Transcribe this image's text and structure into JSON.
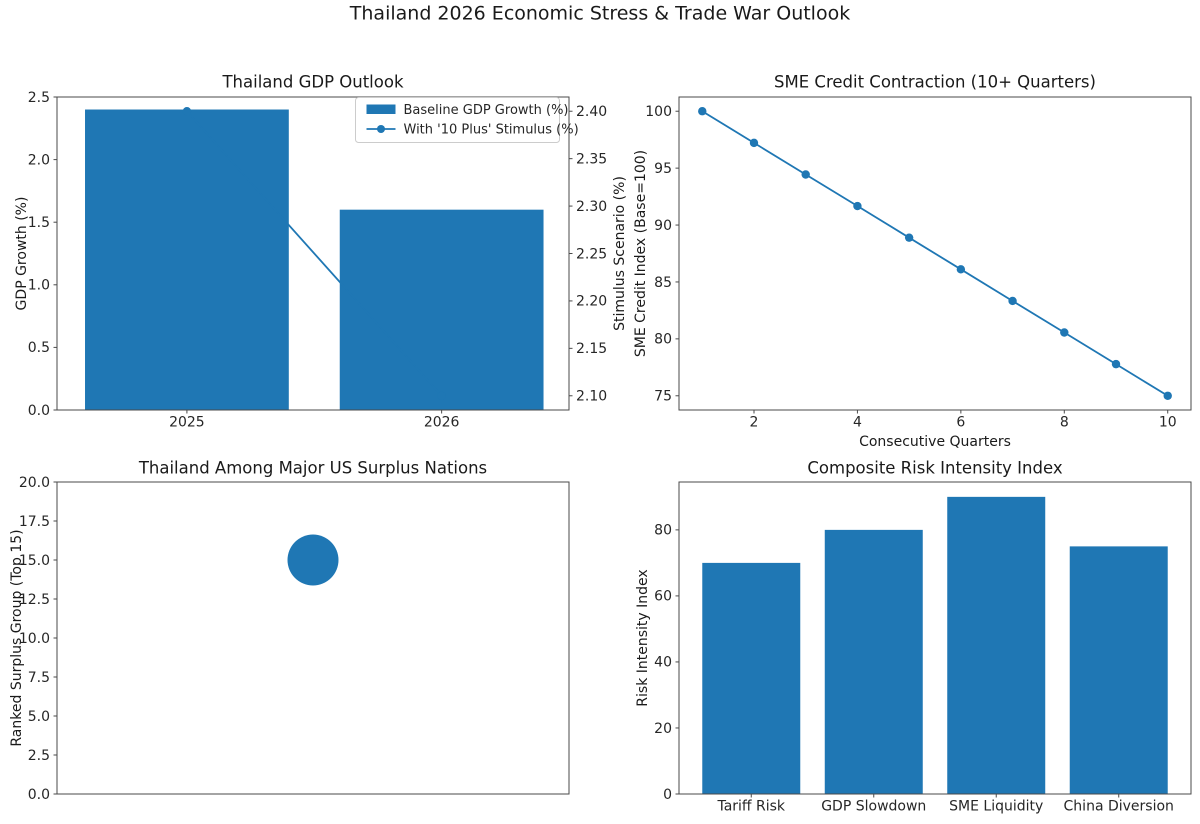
{
  "figure": {
    "suptitle": "Thailand 2026 Economic Stress & Trade War Outlook",
    "background": "#ffffff",
    "accent_blue": "#1f77b4",
    "spine_color": "#4a4a4a",
    "legend_border": "#cccccc"
  },
  "chart_data": [
    {
      "id": "gdp",
      "type": "bar",
      "title": "Thailand GDP Outlook",
      "ylabel": "GDP Growth (%)",
      "ylabel_right": "Stimulus Scenario (%)",
      "categories": [
        "2025",
        "2026"
      ],
      "series": [
        {
          "name": "Baseline GDP Growth (%)",
          "kind": "bar",
          "axis": "left",
          "values": [
            2.4,
            1.6
          ]
        },
        {
          "name": "With '10 Plus' Stimulus (%)",
          "kind": "line",
          "axis": "right",
          "values": [
            2.4,
            2.1
          ]
        }
      ],
      "bar_width": 0.8,
      "xlim": [
        -0.51,
        1.5
      ],
      "ylim": [
        0,
        2.5
      ],
      "ylim_right": [
        2.085,
        2.415
      ],
      "xticks": [
        {
          "v": 0,
          "t": "2025"
        },
        {
          "v": 1,
          "t": "2026"
        }
      ],
      "yticks": [
        {
          "v": 0,
          "t": "0.0"
        },
        {
          "v": 0.5,
          "t": "0.5"
        },
        {
          "v": 1,
          "t": "1.0"
        },
        {
          "v": 1.5,
          "t": "1.5"
        },
        {
          "v": 2,
          "t": "2.0"
        },
        {
          "v": 2.5,
          "t": "2.5"
        }
      ],
      "yticks_right": [
        {
          "v": 2.1,
          "t": "2.10"
        },
        {
          "v": 2.15,
          "t": "2.15"
        },
        {
          "v": 2.2,
          "t": "2.20"
        },
        {
          "v": 2.25,
          "t": "2.25"
        },
        {
          "v": 2.3,
          "t": "2.30"
        },
        {
          "v": 2.35,
          "t": "2.35"
        },
        {
          "v": 2.4,
          "t": "2.40"
        }
      ],
      "legend": true,
      "legend_position": "upper right"
    },
    {
      "id": "sme",
      "type": "line",
      "title": "SME Credit Contraction (10+ Quarters)",
      "xlabel": "Consecutive Quarters",
      "ylabel": "SME Credit Index (Base=100)",
      "x": [
        1,
        2,
        3,
        4,
        5,
        6,
        7,
        8,
        9,
        10
      ],
      "y": [
        100,
        97.22,
        94.44,
        91.67,
        88.89,
        86.11,
        83.33,
        80.56,
        77.78,
        75
      ],
      "xlim": [
        0.55,
        10.45
      ],
      "ylim": [
        73.75,
        101.25
      ],
      "xticks": [
        {
          "v": 2,
          "t": "2"
        },
        {
          "v": 4,
          "t": "4"
        },
        {
          "v": 6,
          "t": "6"
        },
        {
          "v": 8,
          "t": "8"
        },
        {
          "v": 10,
          "t": "10"
        }
      ],
      "yticks": [
        {
          "v": 75,
          "t": "75"
        },
        {
          "v": 80,
          "t": "80"
        },
        {
          "v": 85,
          "t": "85"
        },
        {
          "v": 90,
          "t": "90"
        },
        {
          "v": 95,
          "t": "95"
        },
        {
          "v": 100,
          "t": "100"
        }
      ]
    },
    {
      "id": "surplus",
      "type": "scatter",
      "title": "Thailand Among Major US Surplus Nations",
      "ylabel": "Ranked Surplus Group (Top 15)",
      "points": [
        {
          "x": 0.5,
          "y": 15
        }
      ],
      "marker_radius": 25.5,
      "xlim": [
        0,
        1
      ],
      "ylim": [
        0,
        20
      ],
      "xticks": [],
      "yticks": [
        {
          "v": 0,
          "t": "0.0"
        },
        {
          "v": 2.5,
          "t": "2.5"
        },
        {
          "v": 5,
          "t": "5.0"
        },
        {
          "v": 7.5,
          "t": "7.5"
        },
        {
          "v": 10,
          "t": "10.0"
        },
        {
          "v": 12.5,
          "t": "12.5"
        },
        {
          "v": 15,
          "t": "15.0"
        },
        {
          "v": 17.5,
          "t": "17.5"
        },
        {
          "v": 20,
          "t": "20.0"
        }
      ]
    },
    {
      "id": "risk",
      "type": "bar",
      "title": "Composite Risk Intensity Index",
      "ylabel": "Risk Intensity Index",
      "categories": [
        "Tariff Risk",
        "GDP Slowdown",
        "SME Liquidity",
        "China Diversion"
      ],
      "series": [
        {
          "name": "Risk Intensity Index",
          "kind": "bar",
          "axis": "left",
          "values": [
            70,
            80,
            90,
            75
          ]
        }
      ],
      "bar_width": 0.8,
      "xlim": [
        -0.59,
        3.59
      ],
      "ylim": [
        0,
        94.5
      ],
      "xticks": [
        {
          "v": 0,
          "t": "Tariff Risk"
        },
        {
          "v": 1,
          "t": "GDP Slowdown"
        },
        {
          "v": 2,
          "t": "SME Liquidity"
        },
        {
          "v": 3,
          "t": "China Diversion"
        }
      ],
      "yticks": [
        {
          "v": 0,
          "t": "0"
        },
        {
          "v": 20,
          "t": "20"
        },
        {
          "v": 40,
          "t": "40"
        },
        {
          "v": 60,
          "t": "60"
        },
        {
          "v": 80,
          "t": "80"
        }
      ]
    }
  ]
}
